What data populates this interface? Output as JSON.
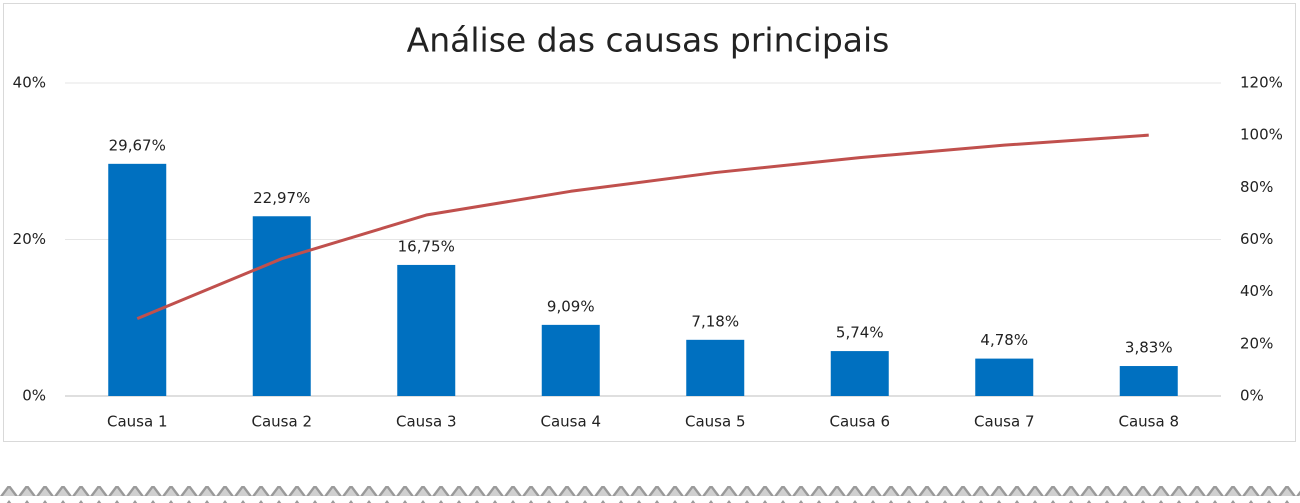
{
  "chart_data": {
    "type": "combo",
    "title": "Análise das causas principais",
    "categories": [
      "Causa 1",
      "Causa 2",
      "Causa 3",
      "Causa 4",
      "Causa 5",
      "Causa 6",
      "Causa 7",
      "Causa 8"
    ],
    "series": [
      {
        "type": "bar",
        "color": "#0070c0",
        "values": [
          29.67,
          22.97,
          16.75,
          9.09,
          7.18,
          5.74,
          4.78,
          3.83
        ],
        "value_labels": [
          "29,67%",
          "22,97%",
          "16,75%",
          "9,09%",
          "7,18%",
          "5,74%",
          "4,78%",
          "3,83%"
        ]
      },
      {
        "type": "line",
        "axis": "y2",
        "color": "#c0504d",
        "values": [
          29.67,
          52.64,
          69.39,
          78.48,
          85.66,
          91.4,
          96.18,
          100
        ]
      }
    ],
    "ylim": [
      0,
      40
    ],
    "yticks": [
      {
        "value": 0,
        "label": "0%"
      },
      {
        "value": 20,
        "label": "20%"
      },
      {
        "value": 40,
        "label": "40%"
      }
    ],
    "y2lim": [
      0,
      120
    ],
    "y2ticks": [
      {
        "value": 0,
        "label": "0%"
      },
      {
        "value": 20,
        "label": "20%"
      },
      {
        "value": 40,
        "label": "40%"
      },
      {
        "value": 60,
        "label": "60%"
      },
      {
        "value": 80,
        "label": "80%"
      },
      {
        "value": 100,
        "label": "100%"
      },
      {
        "value": 120,
        "label": "120%"
      }
    ],
    "grid": true
  }
}
